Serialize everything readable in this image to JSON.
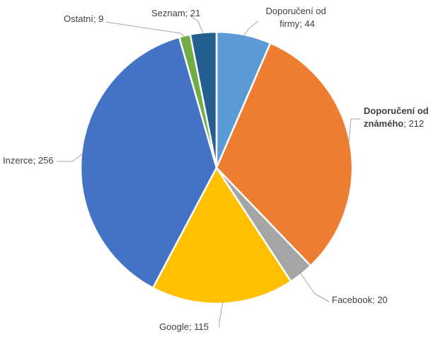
{
  "chart_data": {
    "type": "pie",
    "title": "",
    "slices": [
      {
        "name": "Doporučení od firmy",
        "value": 44,
        "color": "#5B9BD5",
        "label_lines": [
          "Doporučení od",
          "firmy; 44"
        ]
      },
      {
        "name": "Doporučení od známého",
        "value": 212,
        "color": "#ED7D31",
        "label_lines": [
          "Doporučení od",
          "známého; 212"
        ],
        "bold_parts": [
          "Doporučení od",
          "známého"
        ]
      },
      {
        "name": "Facebook",
        "value": 20,
        "color": "#A5A5A5",
        "label_lines": [
          "Facebook; 20"
        ]
      },
      {
        "name": "Google",
        "value": 115,
        "color": "#FFC000",
        "label_lines": [
          "Google; 115"
        ]
      },
      {
        "name": "Inzerce",
        "value": 256,
        "color": "#4472C4",
        "label_lines": [
          "Inzerce; 256"
        ]
      },
      {
        "name": "Ostatní",
        "value": 9,
        "color": "#70AD47",
        "label_lines": [
          "Ostatní; 9"
        ]
      },
      {
        "name": "Seznam",
        "value": 21,
        "color": "#255E91",
        "label_lines": [
          "Seznam; 21"
        ]
      }
    ],
    "start_angle": "12 o'clock",
    "direction": "clockwise",
    "legend": "none",
    "data_labels": "outside with leader lines"
  }
}
